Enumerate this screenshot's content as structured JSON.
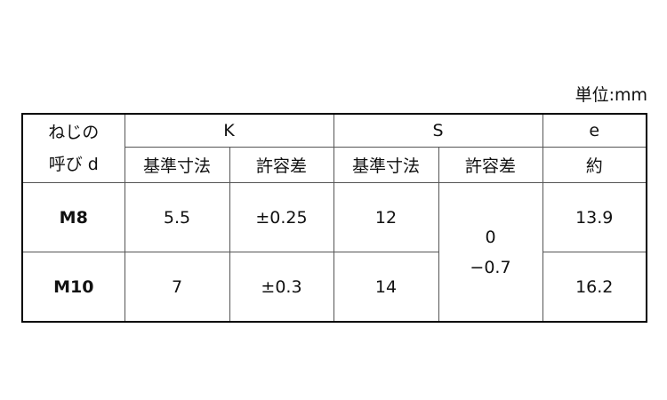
{
  "unit": "単位:mm",
  "header": {
    "nominal": [
      "ねじの",
      "呼び d"
    ],
    "K": "K",
    "S": "S",
    "e": "e",
    "basic": "基準寸法",
    "tolerance": "許容差",
    "approx": "約"
  },
  "rows": [
    {
      "d": "M8",
      "k_basic": "5.5",
      "k_tol": "±0.25",
      "s_basic": "12",
      "e": "13.9"
    },
    {
      "d": "M10",
      "k_basic": "7",
      "k_tol": "±0.3",
      "s_basic": "14",
      "e": "16.2"
    }
  ],
  "s_tol": [
    "0",
    "−0.7"
  ]
}
